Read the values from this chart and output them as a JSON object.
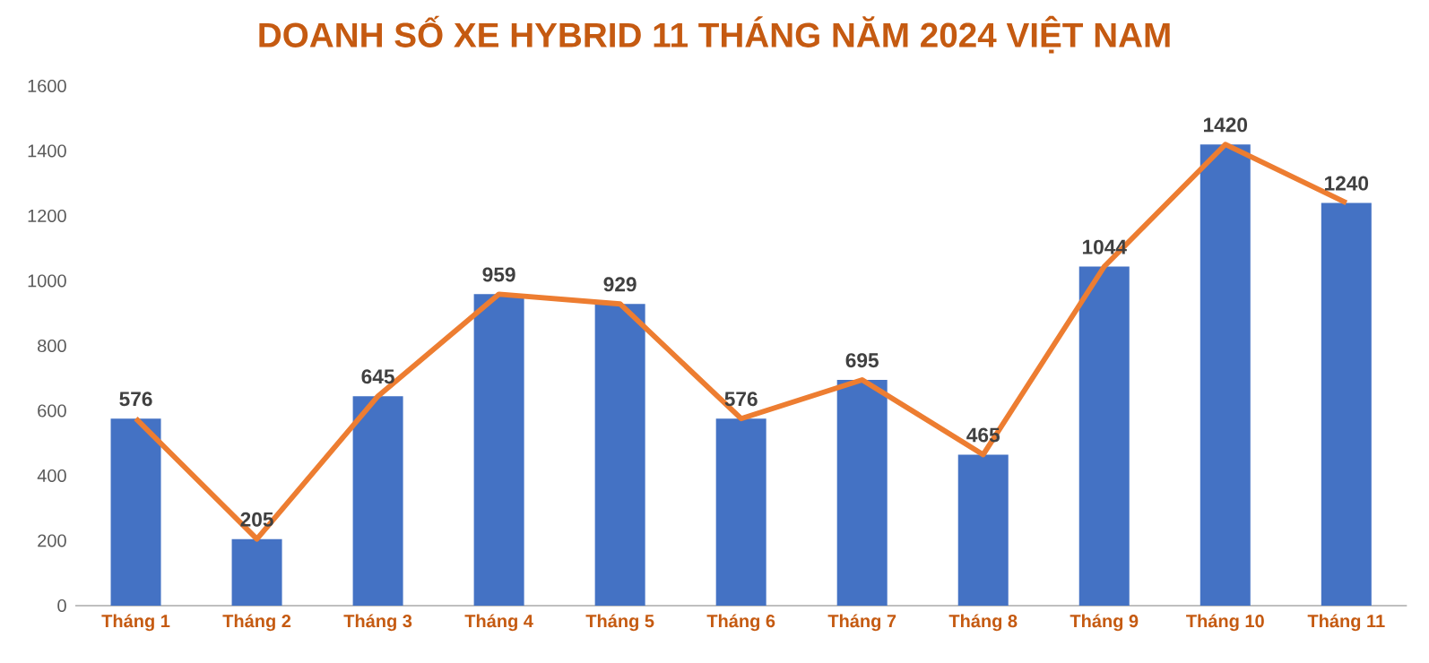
{
  "chart_data": {
    "type": "bar",
    "title": "DOANH SỐ XE HYBRID 11 THÁNG NĂM 2024 VIỆT NAM",
    "categories": [
      "Tháng 1",
      "Tháng 2",
      "Tháng 3",
      "Tháng 4",
      "Tháng 5",
      "Tháng 6",
      "Tháng 7",
      "Tháng 8",
      "Tháng 9",
      "Tháng 10",
      "Tháng 11"
    ],
    "series": [
      {
        "color": "#4472c4",
        "values": [
          576,
          205,
          645,
          959,
          929,
          576,
          695,
          465,
          1044,
          1420,
          1240
        ],
        "value_labels": [
          "576",
          "205",
          "645",
          "959",
          "929",
          "576",
          "695",
          "465",
          "1044",
          "1420",
          "1240"
        ]
      },
      {
        "type": "line",
        "color": "#ed7d31",
        "values": [
          576,
          205,
          645,
          959,
          929,
          576,
          695,
          465,
          1044,
          1420,
          1240
        ]
      }
    ],
    "ylim": [
      0,
      1600
    ],
    "yticks": [
      0,
      200,
      400,
      600,
      800,
      1000,
      1200,
      1400,
      1600
    ]
  }
}
